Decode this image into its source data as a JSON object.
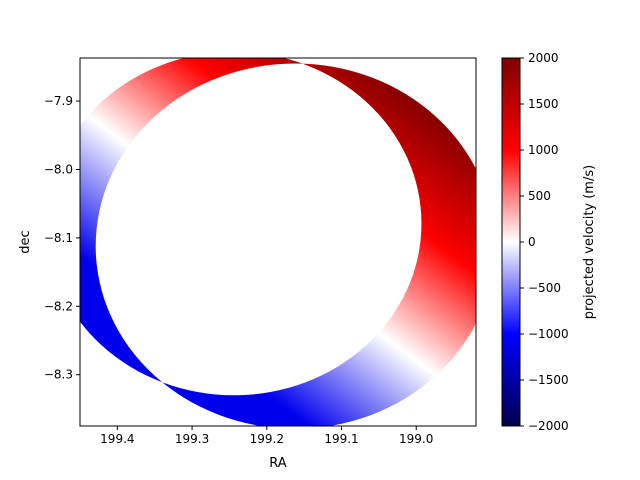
{
  "chart_data": {
    "type": "heatmap",
    "title": "",
    "xlabel": "RA",
    "ylabel": "dec",
    "xlim": [
      199.45,
      198.92
    ],
    "ylim": [
      -8.375,
      -7.837
    ],
    "x_inverted": true,
    "x_ticks": [
      199.4,
      199.3,
      199.2,
      199.1,
      199.0
    ],
    "x_tick_labels": [
      "199.4",
      "199.3",
      "199.2",
      "199.1",
      "199.0"
    ],
    "y_ticks": [
      -7.9,
      -8.0,
      -8.1,
      -8.2,
      -8.3
    ],
    "y_tick_labels": [
      "−7.9",
      "−8.0",
      "−8.1",
      "−8.2",
      "−8.3"
    ],
    "grid": false,
    "colormap": "seismic",
    "colorbar": {
      "label": "projected velocity (m/s)",
      "vmin": -2000,
      "vmax": 2000,
      "ticks": [
        2000,
        1500,
        1000,
        500,
        0,
        -500,
        -1000,
        -1500,
        -2000
      ],
      "tick_labels": [
        "2000",
        "1500",
        "1000",
        "500",
        "0",
        "−500",
        "−1000",
        "−1500",
        "−2000"
      ],
      "colors": [
        "#00004d",
        "#0000ff",
        "#ffffff",
        "#ff0000",
        "#800000"
      ]
    },
    "crescent": {
      "disk_center": [
        199.162,
        -8.112
      ],
      "disk_radius": 0.267,
      "occluder_center": [
        199.244,
        -8.079
      ],
      "occluder_radius": 0.251,
      "velocity_gradient": [
        {
          "ra": 199.2,
          "dec": -8.33,
          "velocity": -1100
        },
        {
          "ra": 199.08,
          "dec": -8.29,
          "velocity": 0
        },
        {
          "ra": 199.1,
          "dec": -7.87,
          "velocity": 1000
        },
        {
          "ra": 198.94,
          "dec": -7.95,
          "velocity": 1950
        }
      ]
    }
  }
}
